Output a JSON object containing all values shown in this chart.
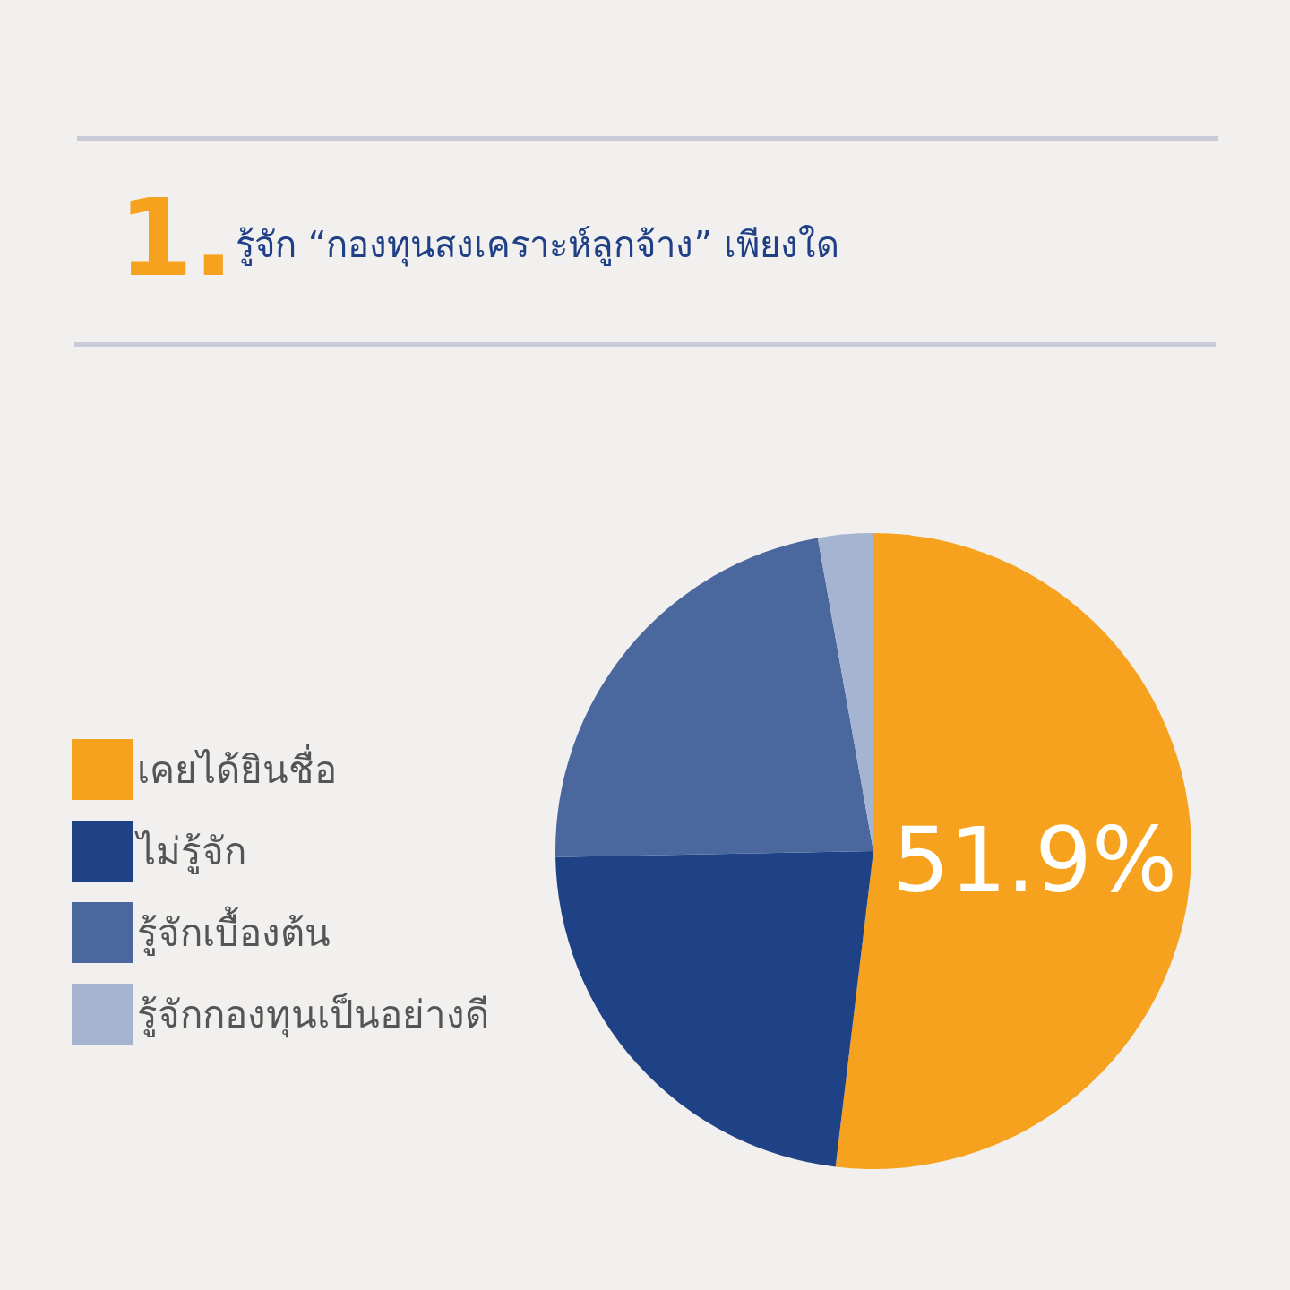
{
  "chart_data": {
    "type": "pie",
    "title": "รู้จัก “กองทุนสงเคราะห์ลูกจ้าง” เพียงใด",
    "annotations": [
      "1."
    ],
    "categories": [
      "เคยได้ยินชื่อ",
      "ไม่รู้จัก",
      "รู้จักเบื้องต้น",
      "รู้จักกองทุนเป็นอย่างดี"
    ],
    "values": [
      51.9,
      22.8,
      22.5,
      2.8
    ],
    "colors": [
      "#f7a21e",
      "#1f4287",
      "#4a689e",
      "#a5b4d1"
    ],
    "value_labels": [
      "51.9%",
      null,
      null,
      null
    ],
    "legend": "left"
  }
}
